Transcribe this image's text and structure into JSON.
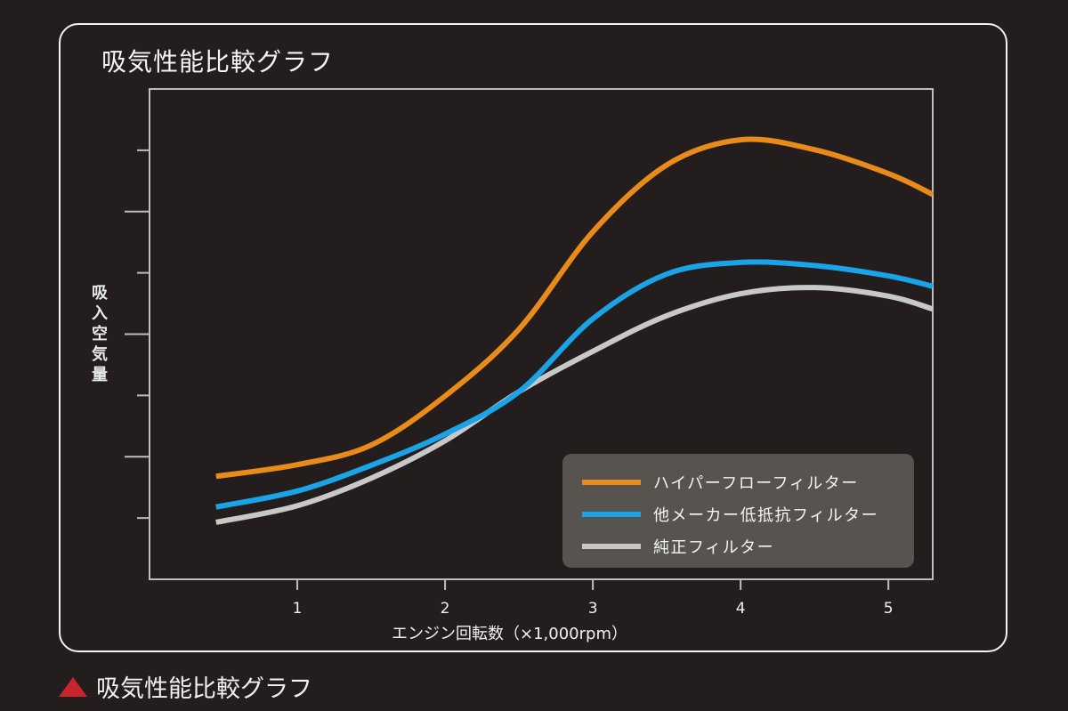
{
  "header": {
    "title": "吸気性能比較グラフ"
  },
  "caption": {
    "text": "吸気性能比較グラフ",
    "marker_icon": "red-triangle-icon",
    "marker_color": "#c7252b"
  },
  "chart_data": {
    "type": "line",
    "title": "吸気性能比較グラフ",
    "xlabel": "エンジン回転数（×1,000rpm）",
    "ylabel": "吸入空気量",
    "ylabel_chars": [
      "吸",
      "入",
      "空",
      "気",
      "量"
    ],
    "xlim": [
      0,
      5.3
    ],
    "ylim": [
      0,
      8
    ],
    "x_ticks": [
      1,
      2,
      3,
      4,
      5
    ],
    "x_tick_labels": [
      "1",
      "2",
      "3",
      "4",
      "5"
    ],
    "y_ticks": [
      1,
      2,
      3,
      4,
      5,
      6,
      7
    ],
    "y_tick_labels_shown": false,
    "grid": false,
    "legend_position": "bottom-right",
    "x": [
      0.45,
      1,
      1.5,
      2,
      2.5,
      3,
      3.5,
      4,
      4.5,
      5,
      5.3
    ],
    "series": [
      {
        "name": "ハイパーフローフィルター",
        "color": "#e88b1a",
        "values": [
          1.68,
          1.87,
          2.19,
          2.99,
          4.08,
          5.67,
          6.76,
          7.17,
          7.01,
          6.62,
          6.28
        ]
      },
      {
        "name": "他メーカー低抵抗フィルター",
        "color": "#1aa3e6",
        "values": [
          1.18,
          1.44,
          1.86,
          2.37,
          3.06,
          4.25,
          4.98,
          5.17,
          5.12,
          4.95,
          4.78
        ]
      },
      {
        "name": "純正フィルター",
        "color": "#c8c8c8",
        "values": [
          0.93,
          1.2,
          1.65,
          2.26,
          3.06,
          3.72,
          4.3,
          4.66,
          4.76,
          4.62,
          4.41
        ]
      }
    ]
  }
}
